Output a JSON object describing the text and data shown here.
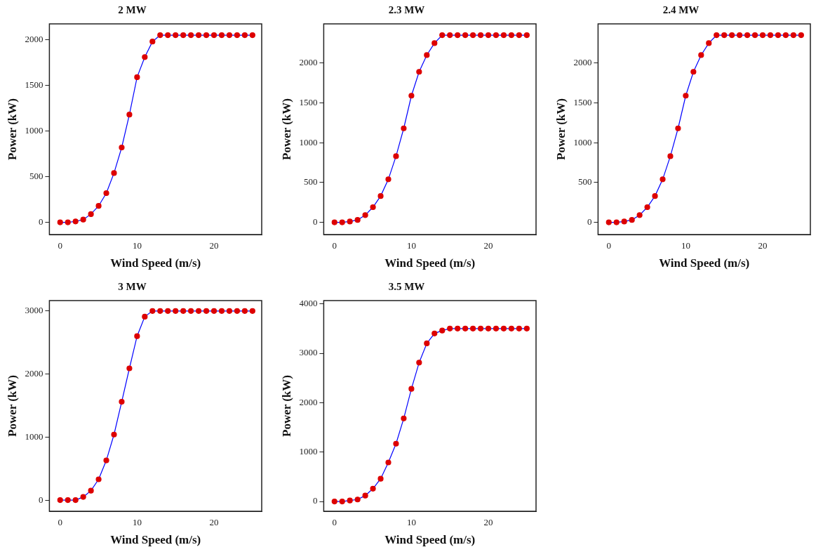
{
  "chart_data": [
    {
      "type": "line",
      "title": "2 MW",
      "xlabel": "Wind Speed (m/s)",
      "ylabel": "Power (kW)",
      "marker": "circle",
      "x": [
        0,
        1,
        2,
        3,
        4,
        5,
        6,
        7,
        8,
        9,
        10,
        11,
        12,
        13,
        14,
        15,
        16,
        17,
        18,
        19,
        20,
        21,
        22,
        23,
        24,
        25
      ],
      "xlim": [
        -1.4,
        26.2
      ],
      "xticks": [
        0,
        10,
        20
      ],
      "ylim": [
        -134,
        2174
      ],
      "yticks": [
        0,
        500,
        1000,
        1500,
        2000
      ],
      "series": [
        {
          "color": "#0000ff",
          "colors": [
            "#dd0000",
            "#dd0000",
            "#dd0000",
            "#dd0000",
            "#dd0000",
            "#dd0000",
            "#dd0000",
            "#dd0000",
            "#dd0000",
            "#dd0000",
            "#dd0000",
            "#dd0000",
            "#dd0000",
            "#dd0000",
            "#dd0000",
            "#dd0000",
            "#dd0000",
            "#dd0000",
            "#dd0000",
            "#dd0000",
            "#dd0000",
            "#dd0000",
            "#dd0000",
            "#dd0000",
            "#dd0000",
            "#dd0000"
          ],
          "values": [
            0,
            0,
            10,
            30,
            90,
            180,
            320,
            540,
            820,
            1180,
            1590,
            1810,
            1980,
            2050,
            2050,
            2050,
            2050,
            2050,
            2050,
            2050,
            2050,
            2050,
            2050,
            2050,
            2050,
            2050
          ]
        }
      ]
    },
    {
      "type": "line",
      "title": "2.3 MW",
      "xlabel": "Wind Speed (m/s)",
      "ylabel": "Power (kW)",
      "marker": "circle",
      "x": [
        0,
        1,
        2,
        3,
        4,
        5,
        6,
        7,
        8,
        9,
        10,
        11,
        12,
        13,
        14,
        15,
        16,
        17,
        18,
        19,
        20,
        21,
        22,
        23,
        24,
        25
      ],
      "xlim": [
        -1.4,
        26.2
      ],
      "xticks": [
        0,
        10,
        20
      ],
      "ylim": [
        -154,
        2492
      ],
      "yticks": [
        0,
        500,
        1000,
        1500,
        2000
      ],
      "series": [
        {
          "color": "#0000ff",
          "colors": [
            "#dd0000",
            "#dd0000",
            "#dd0000",
            "#dd0000",
            "#dd0000",
            "#dd0000",
            "#dd0000",
            "#dd0000",
            "#dd0000",
            "#dd0000",
            "#dd0000",
            "#dd0000",
            "#dd0000",
            "#dd0000",
            "#dd0000",
            "#dd0000",
            "#dd0000",
            "#dd0000",
            "#dd0000",
            "#dd0000",
            "#dd0000",
            "#dd0000",
            "#dd0000",
            "#dd0000",
            "#dd0000",
            "#dd0000"
          ],
          "values": [
            0,
            0,
            10,
            30,
            90,
            190,
            330,
            540,
            830,
            1180,
            1590,
            1890,
            2100,
            2250,
            2350,
            2350,
            2350,
            2350,
            2350,
            2350,
            2350,
            2350,
            2350,
            2350,
            2350,
            2350
          ]
        }
      ]
    },
    {
      "type": "line",
      "title": "2.4 MW",
      "xlabel": "Wind Speed (m/s)",
      "ylabel": "Power (kW)",
      "marker": "circle",
      "x": [
        0,
        1,
        2,
        3,
        4,
        5,
        6,
        7,
        8,
        9,
        10,
        11,
        12,
        13,
        14,
        15,
        16,
        17,
        18,
        19,
        20,
        21,
        22,
        23,
        24,
        25
      ],
      "xlim": [
        -1.4,
        26.2
      ],
      "xticks": [
        0,
        10,
        20
      ],
      "ylim": [
        -154,
        2492
      ],
      "yticks": [
        0,
        500,
        1000,
        1500,
        2000
      ],
      "series": [
        {
          "color": "#0000ff",
          "colors": [
            "#dd0000",
            "#dd0000",
            "#dd0000",
            "#dd0000",
            "#dd0000",
            "#dd0000",
            "#dd0000",
            "#dd0000",
            "#dd0000",
            "#dd0000",
            "#dd0000",
            "#dd0000",
            "#dd0000",
            "#dd0000",
            "#dd0000",
            "#dd0000",
            "#dd0000",
            "#dd0000",
            "#dd0000",
            "#dd0000",
            "#dd0000",
            "#dd0000",
            "#dd0000",
            "#dd0000",
            "#dd0000",
            "#dd0000"
          ],
          "values": [
            0,
            0,
            10,
            30,
            90,
            190,
            330,
            540,
            830,
            1180,
            1590,
            1890,
            2100,
            2250,
            2350,
            2350,
            2350,
            2350,
            2350,
            2350,
            2350,
            2350,
            2350,
            2350,
            2350,
            2350
          ]
        }
      ]
    },
    {
      "type": "line",
      "title": "3 MW",
      "xlabel": "Wind Speed (m/s)",
      "ylabel": "Power (kW)",
      "marker": "circle",
      "x": [
        0,
        1,
        2,
        3,
        4,
        5,
        6,
        7,
        8,
        9,
        10,
        11,
        12,
        13,
        14,
        15,
        16,
        17,
        18,
        19,
        20,
        21,
        22,
        23,
        24,
        25
      ],
      "xlim": [
        -1.4,
        26.2
      ],
      "xticks": [
        0,
        10,
        20
      ],
      "ylim": [
        -177,
        3165
      ],
      "yticks": [
        0,
        1000,
        2000,
        3000
      ],
      "series": [
        {
          "color": "#0000ff",
          "colors": [
            "#dd0000",
            "#dd0000",
            "#dd0000",
            "#dd0000",
            "#dd0000",
            "#dd0000",
            "#dd0000",
            "#dd0000",
            "#dd0000",
            "#dd0000",
            "#dd0000",
            "#dd0000",
            "#dd0000",
            "#dd0000",
            "#dd0000",
            "#dd0000",
            "#dd0000",
            "#dd0000",
            "#dd0000",
            "#dd0000",
            "#dd0000",
            "#dd0000",
            "#dd0000",
            "#dd0000",
            "#dd0000",
            "#dd0000"
          ],
          "values": [
            0,
            0,
            0,
            50,
            150,
            330,
            630,
            1040,
            1560,
            2090,
            2600,
            2910,
            3000,
            3000,
            3000,
            3000,
            3000,
            3000,
            3000,
            3000,
            3000,
            3000,
            3000,
            3000,
            3000,
            3000
          ]
        }
      ]
    },
    {
      "type": "line",
      "title": "3.5 MW",
      "xlabel": "Wind Speed (m/s)",
      "ylabel": "Power (kW)",
      "marker": "circle",
      "x": [
        0,
        1,
        2,
        3,
        4,
        5,
        6,
        7,
        8,
        9,
        10,
        11,
        12,
        13,
        14,
        15,
        16,
        17,
        18,
        19,
        20,
        21,
        22,
        23,
        24,
        25
      ],
      "xlim": [
        -1.4,
        26.2
      ],
      "xticks": [
        0,
        10,
        20
      ],
      "ylim": [
        -198,
        4066
      ],
      "yticks": [
        0,
        1000,
        2000,
        3000,
        4000
      ],
      "series": [
        {
          "color": "#0000ff",
          "colors": [
            "#dd0000",
            "#dd0000",
            "#dd0000",
            "#dd0000",
            "#dd0000",
            "#dd0000",
            "#dd0000",
            "#dd0000",
            "#dd0000",
            "#dd0000",
            "#dd0000",
            "#dd0000",
            "#dd0000",
            "#dd0000",
            "#dd0000",
            "#dd0000",
            "#dd0000",
            "#dd0000",
            "#dd0000",
            "#dd0000",
            "#dd0000",
            "#dd0000",
            "#dd0000",
            "#dd0000",
            "#dd0000",
            "#dd0000"
          ],
          "values": [
            0,
            0,
            20,
            40,
            120,
            260,
            460,
            790,
            1170,
            1680,
            2280,
            2810,
            3200,
            3400,
            3460,
            3500,
            3500,
            3500,
            3500,
            3500,
            3500,
            3500,
            3500,
            3500,
            3500,
            3500
          ]
        }
      ]
    }
  ]
}
